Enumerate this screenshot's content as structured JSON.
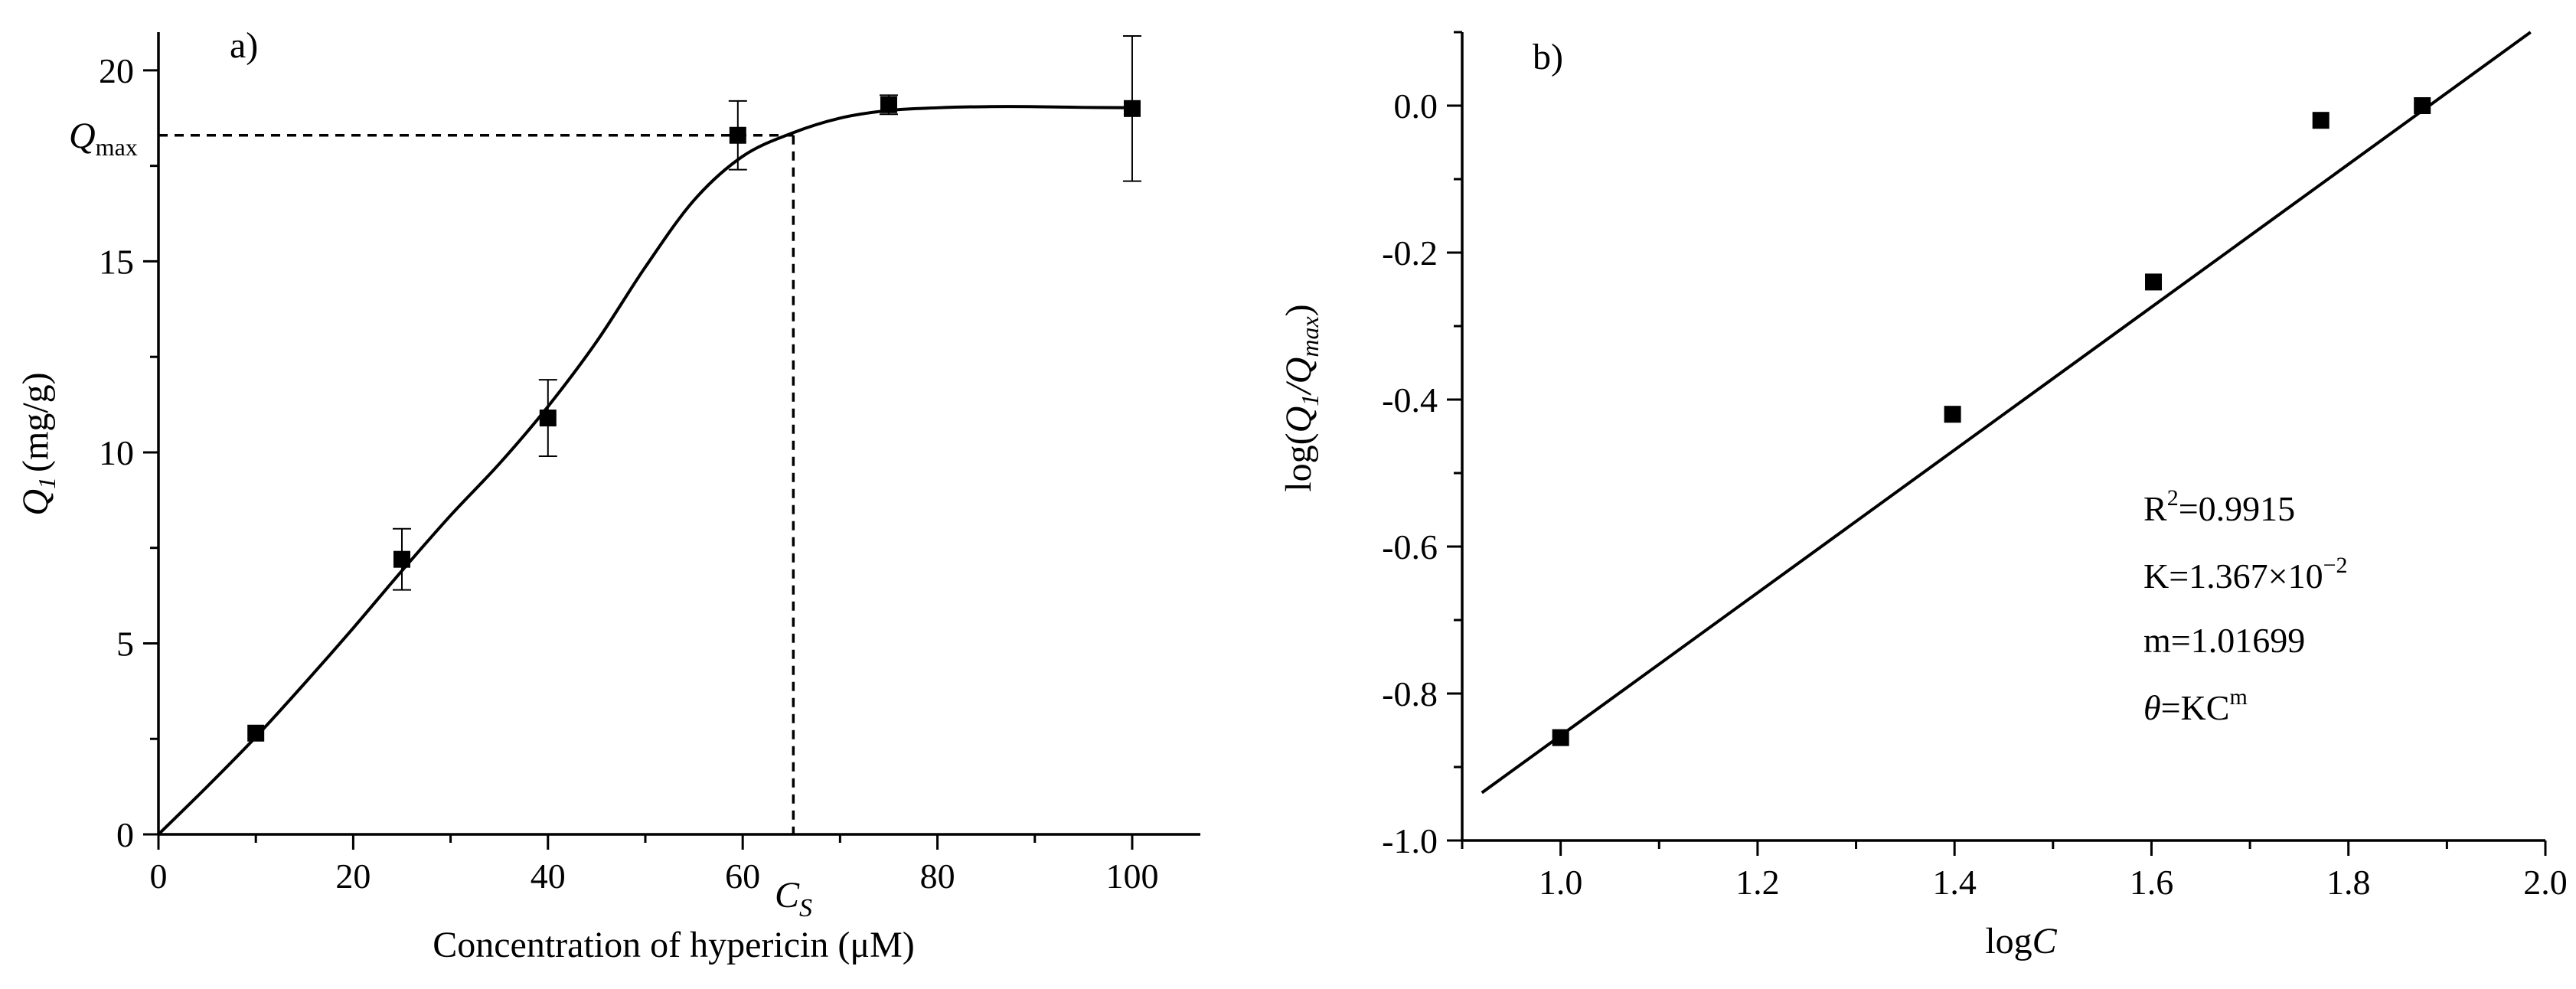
{
  "chart_data": [
    {
      "type": "scatter",
      "panel_label": "a)",
      "xlabel": "Concentration of hypericin (μM)",
      "ylabel": {
        "main": "Q",
        "subscript": "1",
        "unit": "(mg/g)"
      },
      "xlim": [
        0,
        107
      ],
      "ylim": [
        0,
        21
      ],
      "xticks": [
        0,
        20,
        40,
        60,
        80,
        100
      ],
      "xtick_labels": [
        "0",
        "20",
        "40",
        "60",
        "80",
        "100"
      ],
      "yticks": [
        0,
        5,
        10,
        15,
        20
      ],
      "ytick_labels": [
        "0",
        "5",
        "10",
        "15",
        "20"
      ],
      "series": [
        {
          "name": "data",
          "x": [
            10,
            25,
            40,
            59.5,
            75,
            100
          ],
          "y": [
            2.65,
            7.2,
            10.9,
            18.3,
            19.1,
            19.0
          ],
          "error": [
            null,
            0.8,
            1.0,
            0.9,
            0.25,
            1.9
          ]
        },
        {
          "name": "fit",
          "x": [
            0,
            5,
            10,
            15,
            20,
            25,
            30,
            35,
            40,
            45,
            50,
            55,
            60,
            65,
            70,
            75,
            80,
            85,
            90,
            95,
            100
          ],
          "y": [
            0,
            1.25,
            2.55,
            3.95,
            5.4,
            6.9,
            8.35,
            9.7,
            11.2,
            12.9,
            14.85,
            16.6,
            17.75,
            18.35,
            18.75,
            18.95,
            19.02,
            19.05,
            19.05,
            19.03,
            19.02
          ]
        }
      ],
      "annotations": {
        "qmax": {
          "main": "Q",
          "subscript": "max",
          "value": 18.3
        },
        "cs": {
          "main": "C",
          "subscript": "S",
          "value": 65.2
        }
      }
    },
    {
      "type": "scatter",
      "panel_label": "b)",
      "xlabel": {
        "main": "log",
        "italic": "C"
      },
      "ylabel": {
        "prefix": "log(",
        "q": "Q",
        "q_sub": "1",
        "slash": "/",
        "qm": "Q",
        "qm_sub": "max",
        "suffix": ")"
      },
      "xlim": [
        0.9,
        2.0
      ],
      "ylim": [
        -1.0,
        0.1
      ],
      "xticks": [
        1.0,
        1.2,
        1.4,
        1.6,
        1.8,
        2.0
      ],
      "xtick_labels": [
        "1.0",
        "1.2",
        "1.4",
        "1.6",
        "1.8",
        "2.0"
      ],
      "yticks": [
        -1.0,
        -0.8,
        -0.6,
        -0.4,
        -0.2,
        0.0
      ],
      "ytick_labels": [
        "-1.0",
        "-0.8",
        "-0.6",
        "-0.4",
        "-0.2",
        "0.0"
      ],
      "series": [
        {
          "name": "data",
          "x": [
            1.0,
            1.398,
            1.602,
            1.772,
            1.875
          ],
          "y": [
            -0.86,
            -0.42,
            -0.24,
            -0.02,
            0.0
          ]
        },
        {
          "name": "fit",
          "x": [
            0.92,
            1.985
          ],
          "y": [
            -0.935,
            0.1
          ]
        }
      ],
      "annotations": {
        "r2": {
          "label": "R",
          "sup": "2",
          "value": "=0.9915"
        },
        "k": {
          "label": "K=1.367×10",
          "sup": "−2"
        },
        "m": {
          "label": "m=1.01699"
        },
        "theta": {
          "symbol": "θ",
          "label": "=KC",
          "sup": "m"
        }
      }
    }
  ]
}
